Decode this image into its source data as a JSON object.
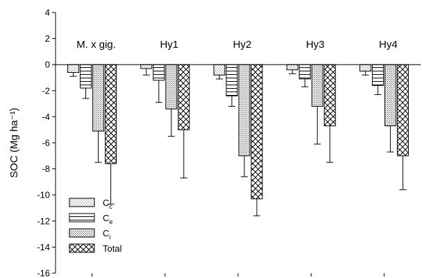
{
  "chart_data": {
    "type": "bar",
    "title": "",
    "xlabel": "",
    "ylabel": "SOC (Mg ha⁻¹)",
    "ylim": [
      -16,
      4
    ],
    "yticks": [
      4,
      2,
      0,
      -2,
      -4,
      -6,
      -8,
      -10,
      -12,
      -14,
      -16
    ],
    "categories": [
      "M. x gig.",
      "Hy1",
      "Hy2",
      "Hy3",
      "Hy4"
    ],
    "series": [
      {
        "name": "Cc",
        "legend_main": "C",
        "legend_sub": "c",
        "pattern": "dots",
        "values": [
          -0.6,
          -0.3,
          -0.8,
          -0.4,
          -0.5
        ],
        "errors": [
          0.3,
          0.5,
          0.3,
          0.3,
          0.3
        ]
      },
      {
        "name": "Ce",
        "legend_main": "C",
        "legend_sub": "e",
        "pattern": "hlines",
        "values": [
          -1.8,
          -1.2,
          -2.4,
          -1.1,
          -1.6
        ],
        "errors": [
          0.8,
          1.7,
          0.8,
          0.6,
          0.7
        ]
      },
      {
        "name": "Ci",
        "legend_main": "C",
        "legend_sub": "i",
        "pattern": "dense",
        "values": [
          -5.1,
          -3.4,
          -7.0,
          -3.2,
          -4.7
        ],
        "errors": [
          2.4,
          2.1,
          1.6,
          2.9,
          2.0
        ]
      },
      {
        "name": "Total",
        "legend_main": "Total",
        "legend_sub": "",
        "pattern": "crosshatch",
        "values": [
          -7.6,
          -5.0,
          -10.3,
          -4.7,
          -7.0
        ],
        "errors": [
          3.1,
          3.7,
          1.3,
          2.8,
          2.6
        ]
      }
    ],
    "legend_position": "bottom-left",
    "grid": false
  }
}
